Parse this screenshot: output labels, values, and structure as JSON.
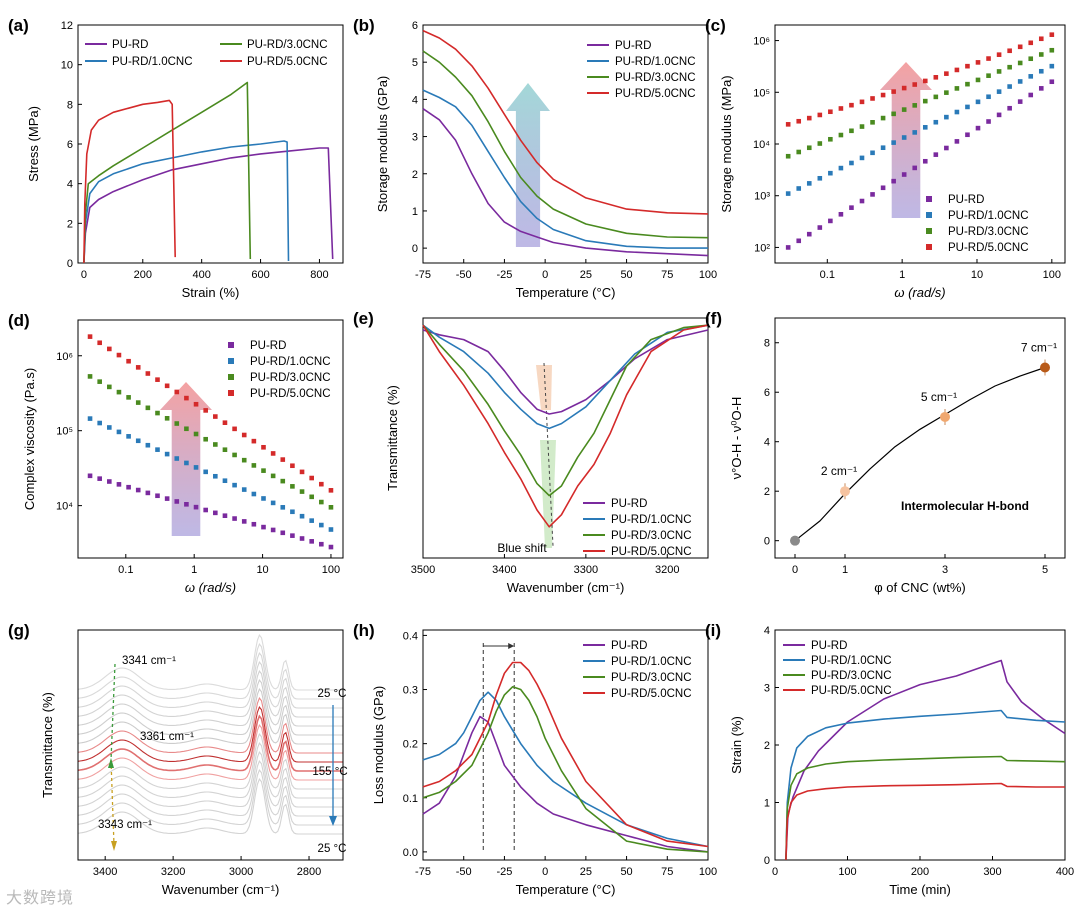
{
  "figure": {
    "watermark": "大数跨境"
  },
  "colors": {
    "PU-RD": "#7a2a9e",
    "PU-RD/1.0CNC": "#2a7ab8",
    "PU-RD/3.0CNC": "#4a8a1f",
    "PU-RD/5.0CNC": "#d42a2a"
  },
  "chart_data": [
    {
      "panel": "(a)",
      "type": "line",
      "xlabel": "Strain (%)",
      "ylabel": "Stress (MPa)",
      "xlim": [
        -20,
        880
      ],
      "ylim": [
        0,
        12
      ],
      "xticks": [
        0,
        200,
        400,
        600,
        800
      ],
      "yticks": [
        0,
        2,
        4,
        6,
        8,
        10,
        12
      ],
      "legend": [
        "PU-RD",
        "PU-RD/1.0CNC",
        "PU-RD/3.0CNC",
        "PU-RD/5.0CNC"
      ],
      "series": [
        {
          "name": "PU-RD",
          "x": [
            0,
            5,
            20,
            50,
            100,
            200,
            300,
            400,
            500,
            600,
            700,
            800,
            830,
            845
          ],
          "y": [
            0,
            1.5,
            2.8,
            3.2,
            3.6,
            4.2,
            4.7,
            5.0,
            5.3,
            5.5,
            5.65,
            5.8,
            5.8,
            0.2
          ]
        },
        {
          "name": "PU-RD/1.0CNC",
          "x": [
            0,
            5,
            20,
            50,
            100,
            200,
            300,
            400,
            500,
            600,
            680,
            690,
            695
          ],
          "y": [
            0,
            2,
            3.5,
            4.1,
            4.5,
            5.0,
            5.3,
            5.6,
            5.85,
            6.0,
            6.15,
            6.1,
            0.1
          ]
        },
        {
          "name": "PU-RD/3.0CNC",
          "x": [
            0,
            5,
            15,
            50,
            100,
            200,
            300,
            400,
            500,
            555,
            565
          ],
          "y": [
            0,
            2.5,
            4.0,
            4.4,
            4.9,
            5.8,
            6.7,
            7.6,
            8.5,
            9.1,
            0.2
          ]
        },
        {
          "name": "PU-RD/5.0CNC",
          "x": [
            0,
            3,
            10,
            25,
            50,
            100,
            150,
            200,
            250,
            290,
            300,
            310
          ],
          "y": [
            0,
            3.0,
            5.5,
            6.7,
            7.2,
            7.6,
            7.8,
            8.0,
            8.1,
            8.2,
            8.0,
            0.3
          ]
        }
      ]
    },
    {
      "panel": "(b)",
      "type": "line",
      "xlabel": "Temperature (°C)",
      "ylabel": "Storage modulus (GPa)",
      "xlim": [
        -75,
        100
      ],
      "ylim": [
        -0.4,
        6
      ],
      "xticks": [
        -75,
        -50,
        -25,
        0,
        25,
        50,
        75,
        100
      ],
      "yticks": [
        0,
        1,
        2,
        3,
        4,
        5,
        6
      ],
      "legend": [
        "PU-RD",
        "PU-RD/1.0CNC",
        "PU-RD/3.0CNC",
        "PU-RD/5.0CNC"
      ],
      "series": [
        {
          "name": "PU-RD",
          "x": [
            -75,
            -65,
            -55,
            -45,
            -35,
            -25,
            -15,
            -5,
            5,
            25,
            50,
            75,
            100
          ],
          "y": [
            3.75,
            3.45,
            2.9,
            2.0,
            1.2,
            0.7,
            0.45,
            0.3,
            0.15,
            0.0,
            -0.1,
            -0.15,
            -0.2
          ]
        },
        {
          "name": "PU-RD/1.0CNC",
          "x": [
            -75,
            -65,
            -55,
            -45,
            -35,
            -25,
            -15,
            -5,
            5,
            25,
            50,
            75,
            100
          ],
          "y": [
            4.25,
            4.05,
            3.8,
            3.3,
            2.6,
            1.9,
            1.25,
            0.8,
            0.5,
            0.2,
            0.05,
            0.0,
            0.0
          ]
        },
        {
          "name": "PU-RD/3.0CNC",
          "x": [
            -75,
            -65,
            -55,
            -45,
            -35,
            -25,
            -15,
            -5,
            5,
            25,
            50,
            75,
            100
          ],
          "y": [
            5.3,
            5.0,
            4.6,
            4.1,
            3.4,
            2.6,
            1.9,
            1.4,
            1.05,
            0.65,
            0.4,
            0.3,
            0.28
          ]
        },
        {
          "name": "PU-RD/5.0CNC",
          "x": [
            -75,
            -65,
            -55,
            -45,
            -35,
            -25,
            -15,
            -5,
            5,
            25,
            50,
            75,
            100
          ],
          "y": [
            5.85,
            5.65,
            5.35,
            4.9,
            4.3,
            3.6,
            2.9,
            2.3,
            1.85,
            1.35,
            1.05,
            0.95,
            0.92
          ]
        }
      ]
    },
    {
      "panel": "(c)",
      "type": "scatter",
      "xlabel": "ω (rad/s)",
      "ylabel": "Storage modulus (MPa)",
      "xscale": "log",
      "yscale": "log",
      "xlim": [
        0.02,
        150
      ],
      "ylim": [
        50,
        2000000
      ],
      "xticks": [
        0.1,
        1,
        10,
        100
      ],
      "xtick_labels": [
        "0.1",
        "1",
        "10",
        "100"
      ],
      "yticks": [
        100,
        1000,
        10000,
        100000,
        1000000
      ],
      "ytick_labels": [
        "10²",
        "10³",
        "10⁴",
        "10⁵",
        "10⁶"
      ],
      "legend": [
        "PU-RD",
        "PU-RD/1.0CNC",
        "PU-RD/3.0CNC",
        "PU-RD/5.0CNC"
      ],
      "series": [
        {
          "name": "PU-RD",
          "start": 100,
          "end": 160000
        },
        {
          "name": "PU-RD/1.0CNC",
          "start": 1100,
          "end": 320000
        },
        {
          "name": "PU-RD/3.0CNC",
          "start": 5800,
          "end": 650000
        },
        {
          "name": "PU-RD/5.0CNC",
          "start": 24000,
          "end": 1300000
        }
      ],
      "x_range": [
        0.03,
        100
      ],
      "points_per_series": 26
    },
    {
      "panel": "(d)",
      "type": "scatter",
      "xlabel": "ω (rad/s)",
      "ylabel": "Complex viscosity (Pa.s)",
      "xscale": "log",
      "yscale": "log",
      "xlim": [
        0.02,
        150
      ],
      "ylim": [
        2000,
        3000000
      ],
      "xticks": [
        0.1,
        1,
        10,
        100
      ],
      "xtick_labels": [
        "0.1",
        "1",
        "10",
        "100"
      ],
      "yticks": [
        10000,
        100000,
        1000000
      ],
      "ytick_labels": [
        "10⁴",
        "10⁵",
        "10⁶"
      ],
      "legend": [
        "PU-RD",
        "PU-RD/1.0CNC",
        "PU-RD/3.0CNC",
        "PU-RD/5.0CNC"
      ],
      "series": [
        {
          "name": "PU-RD",
          "start": 25000,
          "end": 2800
        },
        {
          "name": "PU-RD/1.0CNC",
          "start": 145000,
          "end": 4800
        },
        {
          "name": "PU-RD/3.0CNC",
          "start": 530000,
          "end": 9500
        },
        {
          "name": "PU-RD/5.0CNC",
          "start": 1800000,
          "end": 16000
        }
      ],
      "x_range": [
        0.03,
        100
      ],
      "points_per_series": 26
    },
    {
      "panel": "(e)",
      "type": "line",
      "xlabel": "Wavenumber (cm⁻¹)",
      "ylabel": "Transmittance (%)",
      "xlim": [
        3500,
        3150
      ],
      "ylim": [
        0,
        1
      ],
      "xticks": [
        3500,
        3400,
        3300,
        3200
      ],
      "yticks": [],
      "legend": [
        "PU-RD",
        "PU-RD/1.0CNC",
        "PU-RD/3.0CNC",
        "PU-RD/5.0CNC"
      ],
      "annotation": "Blue shift",
      "series": [
        {
          "name": "PU-RD",
          "x": [
            3500,
            3480,
            3450,
            3420,
            3400,
            3380,
            3360,
            3345,
            3330,
            3300,
            3270,
            3240,
            3200,
            3150
          ],
          "y": [
            0.95,
            0.93,
            0.91,
            0.86,
            0.78,
            0.69,
            0.62,
            0.6,
            0.61,
            0.66,
            0.74,
            0.83,
            0.91,
            0.95
          ]
        },
        {
          "name": "PU-RD/1.0CNC",
          "x": [
            3500,
            3480,
            3450,
            3420,
            3400,
            3380,
            3360,
            3345,
            3330,
            3300,
            3270,
            3240,
            3200,
            3150
          ],
          "y": [
            0.97,
            0.92,
            0.86,
            0.77,
            0.69,
            0.62,
            0.56,
            0.54,
            0.56,
            0.63,
            0.74,
            0.85,
            0.94,
            0.97
          ]
        },
        {
          "name": "PU-RD/3.0CNC",
          "x": [
            3500,
            3480,
            3450,
            3420,
            3400,
            3380,
            3360,
            3345,
            3330,
            3310,
            3290,
            3270,
            3250,
            3220,
            3180,
            3150
          ],
          "y": [
            0.97,
            0.89,
            0.78,
            0.64,
            0.53,
            0.43,
            0.31,
            0.26,
            0.3,
            0.42,
            0.52,
            0.66,
            0.8,
            0.91,
            0.96,
            0.97
          ]
        },
        {
          "name": "PU-RD/5.0CNC",
          "x": [
            3500,
            3480,
            3450,
            3420,
            3400,
            3380,
            3360,
            3345,
            3330,
            3310,
            3290,
            3270,
            3250,
            3220,
            3180,
            3150
          ],
          "y": [
            0.97,
            0.86,
            0.72,
            0.56,
            0.44,
            0.33,
            0.2,
            0.13,
            0.18,
            0.3,
            0.39,
            0.52,
            0.68,
            0.86,
            0.95,
            0.97
          ]
        }
      ]
    },
    {
      "panel": "(f)",
      "type": "scatter",
      "xlabel": "φ of CNC (wt%)",
      "ylabel": "ν°O-H - ν⁰O-H",
      "xlim": [
        -0.4,
        5.4
      ],
      "ylim": [
        -0.7,
        9
      ],
      "xticks": [
        0,
        1,
        3,
        5
      ],
      "yticks": [
        0,
        2,
        4,
        6,
        8
      ],
      "x": [
        0,
        1,
        3,
        5
      ],
      "y": [
        0,
        2,
        5,
        7
      ],
      "point_labels": [
        "",
        "2 cm⁻¹",
        "5 cm⁻¹",
        "7 cm⁻¹"
      ],
      "annotation": "Intermolecular H-bond"
    },
    {
      "panel": "(g)",
      "type": "line",
      "xlabel": "Wavenumber (cm⁻¹)",
      "ylabel": "Transmittance (%)",
      "xlim": [
        3480,
        2700
      ],
      "xticks": [
        3400,
        3200,
        3000,
        2800
      ],
      "annotations": [
        "3341 cm⁻¹",
        "3361 cm⁻¹",
        "3343 cm⁻¹",
        "25 °C",
        "155 °C",
        "25 °C"
      ],
      "trace_count": 17
    },
    {
      "panel": "(h)",
      "type": "line",
      "xlabel": "Temperature (°C)",
      "ylabel": "Loss modulus (GPa)",
      "xlim": [
        -75,
        100
      ],
      "ylim": [
        -0.015,
        0.41
      ],
      "xticks": [
        -75,
        -50,
        -25,
        0,
        25,
        50,
        75,
        100
      ],
      "yticks": [
        0.0,
        0.1,
        0.2,
        0.3,
        0.4
      ],
      "ytick_labels": [
        "0.0",
        "0.1",
        "0.2",
        "0.3",
        "0.4"
      ],
      "legend": [
        "PU-RD",
        "PU-RD/1.0CNC",
        "PU-RD/3.0CNC",
        "PU-RD/5.0CNC"
      ],
      "series": [
        {
          "name": "PU-RD",
          "x": [
            -75,
            -65,
            -55,
            -50,
            -45,
            -40,
            -35,
            -30,
            -25,
            -15,
            -5,
            5,
            25,
            50,
            75,
            100
          ],
          "y": [
            0.07,
            0.09,
            0.14,
            0.18,
            0.22,
            0.25,
            0.24,
            0.2,
            0.16,
            0.12,
            0.09,
            0.07,
            0.05,
            0.03,
            0.01,
            0.0
          ]
        },
        {
          "name": "PU-RD/1.0CNC",
          "x": [
            -75,
            -65,
            -55,
            -50,
            -45,
            -40,
            -35,
            -30,
            -25,
            -15,
            -5,
            5,
            25,
            50,
            75,
            100
          ],
          "y": [
            0.17,
            0.18,
            0.2,
            0.22,
            0.25,
            0.28,
            0.295,
            0.28,
            0.25,
            0.2,
            0.16,
            0.13,
            0.09,
            0.05,
            0.025,
            0.01
          ]
        },
        {
          "name": "PU-RD/3.0CNC",
          "x": [
            -75,
            -65,
            -55,
            -45,
            -40,
            -35,
            -30,
            -25,
            -20,
            -15,
            -10,
            -5,
            0,
            10,
            25,
            50,
            75,
            100
          ],
          "y": [
            0.1,
            0.11,
            0.13,
            0.16,
            0.19,
            0.22,
            0.26,
            0.29,
            0.305,
            0.3,
            0.28,
            0.25,
            0.21,
            0.15,
            0.08,
            0.02,
            0.005,
            0.0
          ]
        },
        {
          "name": "PU-RD/5.0CNC",
          "x": [
            -75,
            -65,
            -55,
            -45,
            -35,
            -30,
            -25,
            -20,
            -15,
            -10,
            -5,
            0,
            10,
            25,
            50,
            75,
            100
          ],
          "y": [
            0.12,
            0.13,
            0.15,
            0.18,
            0.24,
            0.29,
            0.33,
            0.35,
            0.35,
            0.335,
            0.31,
            0.28,
            0.21,
            0.13,
            0.05,
            0.02,
            0.01
          ]
        }
      ]
    },
    {
      "panel": "(i)",
      "type": "line",
      "xlabel": "Time (min)",
      "ylabel": "Strain (%)",
      "xlim": [
        0,
        400
      ],
      "ylim": [
        0,
        4
      ],
      "xticks": [
        0,
        100,
        200,
        300,
        400
      ],
      "yticks": [
        0,
        1,
        2,
        3,
        4
      ],
      "legend": [
        "PU-RD",
        "PU-RD/1.0CNC",
        "PU-RD/3.0CNC",
        "PU-RD/5.0CNC"
      ],
      "series": [
        {
          "name": "PU-RD",
          "x": [
            15,
            18,
            25,
            40,
            60,
            100,
            150,
            200,
            250,
            300,
            312,
            320,
            340,
            370,
            400
          ],
          "y": [
            0,
            0.8,
            1.1,
            1.55,
            1.9,
            2.4,
            2.8,
            3.05,
            3.2,
            3.42,
            3.47,
            3.1,
            2.75,
            2.45,
            2.2
          ]
        },
        {
          "name": "PU-RD/1.0CNC",
          "x": [
            15,
            17,
            22,
            30,
            45,
            70,
            100,
            150,
            200,
            250,
            312,
            320,
            360,
            400
          ],
          "y": [
            0,
            1.0,
            1.6,
            1.95,
            2.15,
            2.3,
            2.38,
            2.45,
            2.5,
            2.54,
            2.6,
            2.48,
            2.43,
            2.4
          ]
        },
        {
          "name": "PU-RD/3.0CNC",
          "x": [
            15,
            17,
            22,
            30,
            45,
            70,
            100,
            150,
            200,
            250,
            312,
            320,
            360,
            400
          ],
          "y": [
            0,
            0.9,
            1.3,
            1.5,
            1.6,
            1.67,
            1.71,
            1.74,
            1.76,
            1.78,
            1.8,
            1.73,
            1.72,
            1.71
          ]
        },
        {
          "name": "PU-RD/5.0CNC",
          "x": [
            15,
            17,
            22,
            30,
            45,
            70,
            100,
            150,
            200,
            250,
            312,
            320,
            360,
            400
          ],
          "y": [
            0,
            0.7,
            1.0,
            1.13,
            1.2,
            1.24,
            1.27,
            1.29,
            1.3,
            1.31,
            1.33,
            1.28,
            1.27,
            1.27
          ]
        }
      ]
    }
  ]
}
